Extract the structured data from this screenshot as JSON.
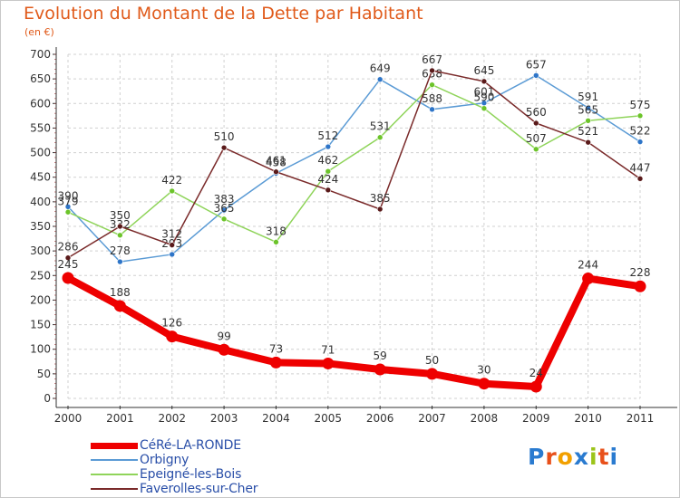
{
  "header": {
    "title": "Evolution du Montant de la Dette par Habitant",
    "subtitle": "(en €)"
  },
  "colors": {
    "title": "#e05a1a",
    "axis": "#333333",
    "grid": "#d0d0d0",
    "legend_text": "#2a4fa8"
  },
  "logo": {
    "letters": [
      "P",
      "r",
      "o",
      "x",
      "i",
      "t",
      "i"
    ],
    "colors": [
      "#2a7bd0",
      "#e8501a",
      "#f2a000",
      "#2a7bd0",
      "#9cc41a",
      "#e8501a",
      "#2a7bd0"
    ]
  },
  "chart_data": {
    "type": "line",
    "title": "Evolution du Montant de la Dette par Habitant",
    "subtitle": "(en €)",
    "xlabel": "",
    "ylabel": "",
    "ylim": [
      0,
      700
    ],
    "y_ticks": [
      0,
      50,
      100,
      150,
      200,
      250,
      300,
      350,
      400,
      450,
      500,
      550,
      600,
      650,
      700
    ],
    "grid": true,
    "legend_position": "bottom-left",
    "categories": [
      "2000",
      "2001",
      "2002",
      "2003",
      "2004",
      "2005",
      "2006",
      "2007",
      "2008",
      "2009",
      "2010",
      "2011"
    ],
    "series": [
      {
        "name": "Orbigny",
        "color": "#5b9bd5",
        "marker": "#2e75c8",
        "values": [
          390,
          278,
          293,
          383,
          458,
          512,
          649,
          588,
          601,
          657,
          591,
          522
        ],
        "labels": [
          "390",
          "278",
          "293",
          "383",
          "458",
          "512",
          "649",
          "588",
          "601",
          "657",
          "591",
          "522"
        ]
      },
      {
        "name": "Epeigné-les-Bois",
        "color": "#8fd45a",
        "marker": "#6cc42a",
        "values": [
          379,
          332,
          422,
          365,
          318,
          462,
          531,
          638,
          590,
          507,
          565,
          575
        ],
        "labels": [
          "379",
          "332",
          "422",
          "365",
          "318",
          "462",
          "531",
          "638",
          "590",
          "507",
          "565",
          "575"
        ]
      },
      {
        "name": "Faverolles-sur-Cher",
        "color": "#7a2a2a",
        "marker": "#5a1a1a",
        "values": [
          286,
          350,
          312,
          510,
          461,
          424,
          385,
          667,
          645,
          560,
          521,
          447
        ],
        "labels": [
          "286",
          "350",
          "312",
          "510",
          "461",
          "424",
          "385",
          "667",
          "645",
          "560",
          "521",
          "447"
        ]
      },
      {
        "name": "CéRé-LA-RONDE",
        "color": "#ee0000",
        "marker": "#ee0000",
        "values": [
          245,
          188,
          126,
          99,
          73,
          71,
          59,
          50,
          30,
          24,
          244,
          228
        ],
        "labels": [
          "245",
          "188",
          "126",
          "99",
          "73",
          "71",
          "59",
          "50",
          "30",
          "24",
          "244",
          "228"
        ]
      }
    ]
  },
  "legend": {
    "items": [
      {
        "label": "CéRé-LA-RONDE",
        "color": "#ee0000",
        "thickness": 7
      },
      {
        "label": "Orbigny",
        "color": "#5b9bd5",
        "thickness": 2
      },
      {
        "label": "Epeigné-les-Bois",
        "color": "#8fd45a",
        "thickness": 2
      },
      {
        "label": "Faverolles-sur-Cher",
        "color": "#7a2a2a",
        "thickness": 2
      }
    ]
  }
}
